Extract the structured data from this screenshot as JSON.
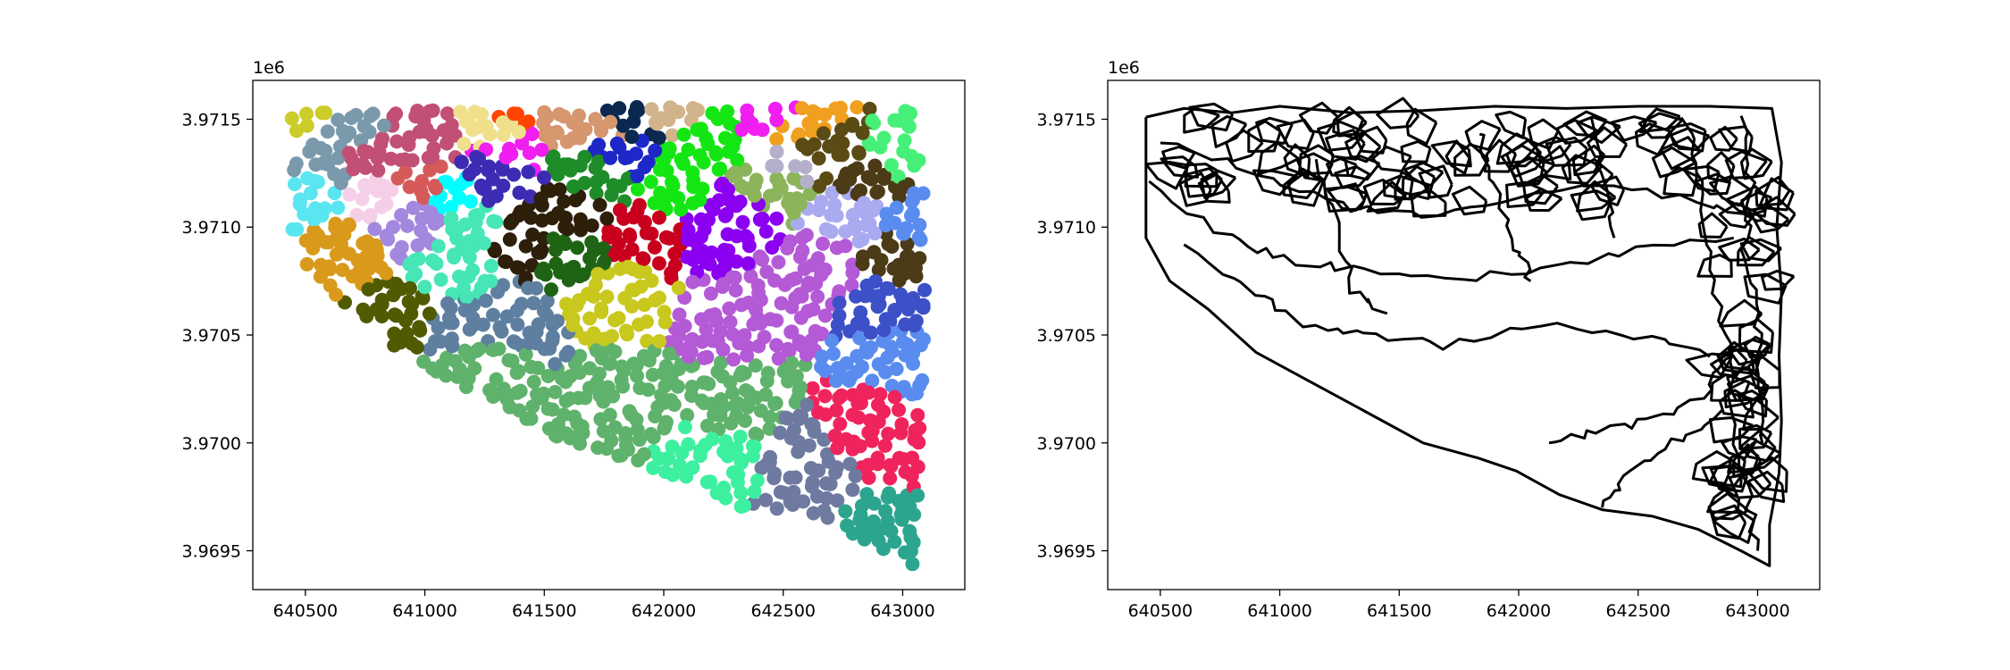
{
  "chart_data": [
    {
      "type": "scatter",
      "title": "",
      "xlabel": "",
      "ylabel": "",
      "xlim": [
        640280,
        643260
      ],
      "ylim": [
        3969320,
        3971680
      ],
      "x_ticks": [
        640500,
        641000,
        641500,
        642000,
        642500,
        643000
      ],
      "x_tick_labels": [
        "640500",
        "641000",
        "641500",
        "642000",
        "642500",
        "643000"
      ],
      "y_ticks": [
        3969500,
        3970000,
        3970500,
        3971000,
        3971500
      ],
      "y_tick_labels": [
        "3.9695",
        "3.9700",
        "3.9705",
        "3.9710",
        "3.9715"
      ],
      "y_offset_label": "1e6",
      "grid": false,
      "description_of_data": "approx. 1500 point locations clustered into many colored regions",
      "cluster_colors": [
        "#5fb26b",
        "#b45ad6",
        "#2d1f0a",
        "#46e6b6",
        "#a487de",
        "#5e7fa0",
        "#d99a1c",
        "#f0245c",
        "#6f7aa0",
        "#2ca58e",
        "#5a8cf0",
        "#8b00f0",
        "#c24f74",
        "#4b3b16",
        "#46f078",
        "#14e614",
        "#d6966e",
        "#7a9aac",
        "#cccc2a",
        "#d65a5a",
        "#5ae6f0",
        "#f0a01e",
        "#1e28c8",
        "#3c50c8",
        "#3c2cb4",
        "#f01ef0",
        "#f5cfe8",
        "#8cb45a",
        "#1e6414",
        "#c8c81e",
        "#b4b0cc",
        "#aaaaf0",
        "#f0e08c",
        "#5a4a14",
        "#3cf0a0",
        "#c8001e",
        "#0a2850",
        "#d4d48a",
        "#505a00",
        "#1e8c28",
        "#ff4500",
        "#00ffff",
        "#d2b48c"
      ]
    },
    {
      "type": "line",
      "title": "",
      "xlabel": "",
      "ylabel": "",
      "xlim": [
        640280,
        643260
      ],
      "ylim": [
        3969320,
        3971680
      ],
      "x_ticks": [
        640500,
        641000,
        641500,
        642000,
        642500,
        643000
      ],
      "x_tick_labels": [
        "640500",
        "641000",
        "641500",
        "642000",
        "642500",
        "643000"
      ],
      "y_ticks": [
        3969500,
        3970000,
        3970500,
        3971000,
        3971500
      ],
      "y_tick_labels": [
        "3.9695",
        "3.9700",
        "3.9705",
        "3.9710",
        "3.9715"
      ],
      "y_offset_label": "1e6",
      "grid": false,
      "description_of_data": "black polygon boundaries of the same regions",
      "outer_boundary": [
        [
          640440,
          3971510
        ],
        [
          640600,
          3971550
        ],
        [
          640800,
          3971530
        ],
        [
          641000,
          3971560
        ],
        [
          641300,
          3971530
        ],
        [
          641600,
          3971540
        ],
        [
          641900,
          3971560
        ],
        [
          642200,
          3971550
        ],
        [
          642500,
          3971560
        ],
        [
          642800,
          3971560
        ],
        [
          643060,
          3971550
        ],
        [
          643100,
          3971300
        ],
        [
          643080,
          3971000
        ],
        [
          643100,
          3970700
        ],
        [
          643090,
          3970400
        ],
        [
          643100,
          3970100
        ],
        [
          643090,
          3969860
        ],
        [
          643050,
          3969620
        ],
        [
          643050,
          3969430
        ],
        [
          642930,
          3969500
        ],
        [
          642750,
          3969600
        ],
        [
          642560,
          3969660
        ],
        [
          642350,
          3969690
        ],
        [
          642170,
          3969760
        ],
        [
          641990,
          3969870
        ],
        [
          641830,
          3969930
        ],
        [
          641600,
          3970000
        ],
        [
          641350,
          3970150
        ],
        [
          641100,
          3970300
        ],
        [
          640900,
          3970420
        ],
        [
          640700,
          3970620
        ],
        [
          640540,
          3970750
        ],
        [
          640440,
          3970950
        ],
        [
          640440,
          3971510
        ]
      ],
      "interior_lines": [
        [
          [
            640500,
            3971400
          ],
          [
            640900,
            3971250
          ],
          [
            641250,
            3971100
          ],
          [
            641600,
            3971050
          ],
          [
            642000,
            3971150
          ],
          [
            642400,
            3971200
          ],
          [
            642800,
            3971100
          ],
          [
            643080,
            3971000
          ]
        ],
        [
          [
            640450,
            3971200
          ],
          [
            640800,
            3970950
          ],
          [
            641000,
            3970850
          ],
          [
            641300,
            3970800
          ],
          [
            641700,
            3970750
          ],
          [
            642100,
            3970800
          ],
          [
            642500,
            3970900
          ],
          [
            642900,
            3970950
          ]
        ],
        [
          [
            641150,
            3971300
          ],
          [
            641250,
            3971000
          ],
          [
            641300,
            3970700
          ],
          [
            641450,
            3970600
          ]
        ],
        [
          [
            641830,
            3971450
          ],
          [
            641900,
            3971200
          ],
          [
            641990,
            3970900
          ],
          [
            642050,
            3970750
          ]
        ],
        [
          [
            642300,
            3971500
          ],
          [
            642350,
            3971200
          ],
          [
            642400,
            3970950
          ]
        ],
        [
          [
            642700,
            3971500
          ],
          [
            642760,
            3971200
          ],
          [
            642800,
            3970800
          ],
          [
            642880,
            3970450
          ],
          [
            642900,
            3970100
          ],
          [
            642950,
            3969800
          ],
          [
            643000,
            3969500
          ]
        ],
        [
          [
            642950,
            3971500
          ],
          [
            642970,
            3971200
          ],
          [
            642950,
            3970900
          ],
          [
            643000,
            3970600
          ],
          [
            643000,
            3970300
          ],
          [
            643020,
            3970000
          ]
        ],
        [
          [
            640600,
            3970900
          ],
          [
            640900,
            3970700
          ],
          [
            641100,
            3970550
          ],
          [
            641350,
            3970500
          ],
          [
            641700,
            3970450
          ],
          [
            642100,
            3970550
          ],
          [
            642500,
            3970500
          ],
          [
            642800,
            3970400
          ]
        ],
        [
          [
            642130,
            3970000
          ],
          [
            642300,
            3970050
          ],
          [
            642550,
            3970100
          ],
          [
            642800,
            3970250
          ],
          [
            642900,
            3970450
          ]
        ],
        [
          [
            642350,
            3969690
          ],
          [
            642450,
            3969850
          ],
          [
            642650,
            3970000
          ],
          [
            642850,
            3970150
          ]
        ]
      ]
    }
  ]
}
